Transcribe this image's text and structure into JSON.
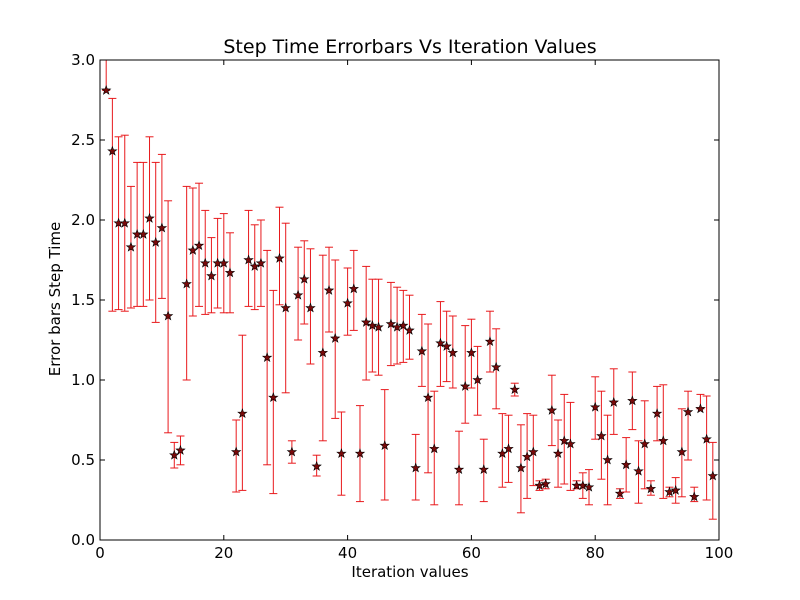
{
  "chart_data": {
    "type": "scatter",
    "title": "Step Time Errorbars Vs Iteration Values",
    "xlabel": "Iteration values",
    "ylabel": "Error bars Step Time",
    "xlim": [
      0,
      100
    ],
    "ylim": [
      0.0,
      3.0
    ],
    "xticks": [
      "0",
      "20",
      "40",
      "60",
      "80",
      "100"
    ],
    "yticks": [
      "0.0",
      "0.5",
      "1.0",
      "1.5",
      "2.0",
      "2.5",
      "3.0"
    ],
    "grid": false,
    "legend": "none",
    "marker": "star",
    "colors": {
      "errorbar": "#e8191c",
      "marker_fill": "#7a0a0a",
      "marker_edge": "#000000"
    },
    "series": [
      {
        "x": [
          1,
          2,
          3,
          4,
          5,
          6,
          7,
          8,
          9,
          10,
          11,
          12,
          13,
          14,
          15,
          16,
          17,
          18,
          19,
          20,
          21,
          22,
          23,
          24,
          25,
          26,
          27,
          28,
          29,
          30,
          31,
          32,
          33,
          34,
          35,
          36,
          37,
          38,
          39,
          40,
          41,
          42,
          43,
          44,
          45,
          46,
          47,
          48,
          49,
          50,
          51,
          52,
          53,
          54,
          55,
          56,
          57,
          58,
          59,
          60,
          61,
          62,
          63,
          64,
          65,
          66,
          67,
          68,
          69,
          70,
          71,
          72,
          73,
          74,
          75,
          76,
          77,
          78,
          79,
          80,
          81,
          82,
          83,
          84,
          85,
          86,
          87,
          88,
          89,
          90,
          91,
          92,
          93,
          94,
          95,
          96,
          97,
          98,
          99
        ],
        "y": [
          2.81,
          2.43,
          1.98,
          1.98,
          1.83,
          1.91,
          1.91,
          2.01,
          1.86,
          1.95,
          1.4,
          0.53,
          0.56,
          1.6,
          1.81,
          1.84,
          1.73,
          1.65,
          1.73,
          1.73,
          1.67,
          0.55,
          0.79,
          1.75,
          1.71,
          1.73,
          1.14,
          0.89,
          1.76,
          1.45,
          0.55,
          1.53,
          1.63,
          1.45,
          0.46,
          1.17,
          1.56,
          1.26,
          0.54,
          1.48,
          1.57,
          0.54,
          1.36,
          1.34,
          1.33,
          0.59,
          1.35,
          1.33,
          1.34,
          1.31,
          0.45,
          1.18,
          0.89,
          0.57,
          1.23,
          1.21,
          1.17,
          0.44,
          0.96,
          1.17,
          1.0,
          0.44,
          1.24,
          1.08,
          0.54,
          0.57,
          0.94,
          0.45,
          0.52,
          0.55,
          0.34,
          0.35,
          0.81,
          0.54,
          0.62,
          0.6,
          0.34,
          0.34,
          0.33,
          0.83,
          0.65,
          0.5,
          0.86,
          0.29,
          0.47,
          0.87,
          0.43,
          0.6,
          0.32,
          0.79,
          0.62,
          0.3,
          0.31,
          0.55,
          0.8,
          0.27,
          0.82,
          0.63,
          0.4
        ],
        "err_low": [
          0.0,
          1.0,
          0.54,
          0.55,
          0.38,
          0.45,
          0.45,
          0.51,
          0.5,
          0.44,
          0.73,
          0.08,
          0.09,
          0.6,
          0.41,
          0.38,
          0.32,
          0.23,
          0.28,
          0.31,
          0.25,
          0.25,
          0.48,
          0.29,
          0.27,
          0.27,
          0.67,
          0.6,
          0.29,
          0.53,
          0.07,
          0.28,
          0.28,
          0.35,
          0.06,
          0.55,
          0.26,
          0.5,
          0.26,
          0.2,
          0.26,
          0.3,
          0.36,
          0.29,
          0.3,
          0.34,
          0.26,
          0.23,
          0.23,
          0.18,
          0.2,
          0.22,
          0.47,
          0.35,
          0.27,
          0.22,
          0.22,
          0.22,
          0.23,
          0.22,
          0.22,
          0.2,
          0.19,
          0.26,
          0.21,
          0.21,
          0.04,
          0.28,
          0.26,
          0.21,
          0.03,
          0.03,
          0.22,
          0.21,
          0.27,
          0.29,
          0.02,
          0.08,
          0.11,
          0.2,
          0.27,
          0.28,
          0.2,
          0.03,
          0.17,
          0.18,
          0.2,
          0.28,
          0.04,
          0.17,
          0.36,
          0.03,
          0.08,
          0.28,
          0.3,
          0.03,
          0.0,
          0.38,
          0.27
        ],
        "err_high": [
          0.2,
          0.33,
          0.54,
          0.55,
          0.38,
          0.45,
          0.45,
          0.51,
          0.5,
          0.46,
          0.72,
          0.08,
          0.09,
          0.61,
          0.39,
          0.39,
          0.33,
          0.24,
          0.28,
          0.31,
          0.25,
          0.2,
          0.49,
          0.31,
          0.26,
          0.27,
          0.67,
          0.67,
          0.32,
          0.53,
          0.07,
          0.3,
          0.24,
          0.37,
          0.07,
          0.61,
          0.27,
          0.49,
          0.26,
          0.22,
          0.24,
          0.3,
          0.35,
          0.29,
          0.3,
          0.35,
          0.26,
          0.25,
          0.22,
          0.22,
          0.21,
          0.23,
          0.46,
          0.36,
          0.26,
          0.22,
          0.23,
          0.24,
          0.38,
          0.21,
          0.21,
          0.19,
          0.19,
          0.24,
          0.25,
          0.21,
          0.04,
          0.27,
          0.27,
          0.23,
          0.03,
          0.03,
          0.22,
          0.21,
          0.29,
          0.26,
          0.03,
          0.08,
          0.11,
          0.19,
          0.28,
          0.28,
          0.21,
          0.03,
          0.17,
          0.18,
          0.19,
          0.27,
          0.05,
          0.17,
          0.35,
          0.03,
          0.08,
          0.27,
          0.13,
          0.06,
          0.09,
          0.27,
          0.21
        ]
      }
    ]
  }
}
